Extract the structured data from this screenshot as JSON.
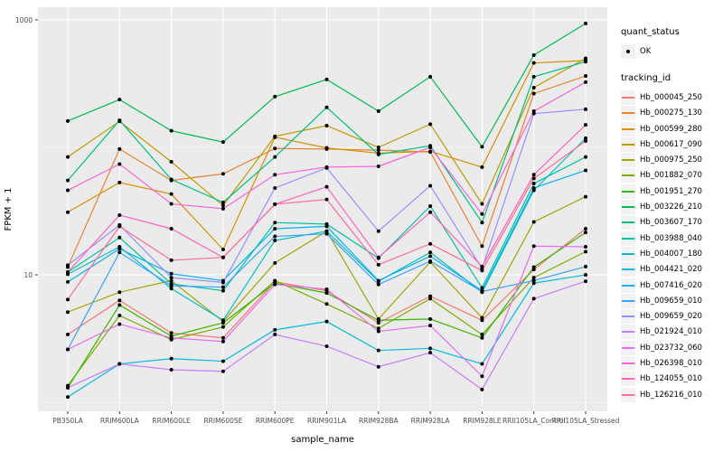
{
  "chart_data": {
    "type": "line",
    "title": "",
    "xlabel": "sample_name",
    "ylabel": "FPKM + 1",
    "y_scale": "log10",
    "ylim": [
      1,
      1000
    ],
    "grid": true,
    "panel_bg": "#EBEBEB",
    "grid_color": "#FFFFFF",
    "point_color": "#000000",
    "legend_position": "right",
    "y_major_ticks": [
      {
        "value": 10,
        "label": "10"
      },
      {
        "value": 1000,
        "label": "1000"
      }
    ],
    "y_minor_ticks": [
      1,
      100
    ],
    "categories": [
      "PB350LA",
      "RRIM600LA",
      "RRIM600LE",
      "RRIM600SE",
      "RRIM600PE",
      "RRIM901LA",
      "RRIM928BA",
      "RRIM928LA",
      "RRIM928LE",
      "RRII105LA_Control",
      "RRII105LA_Stressed"
    ],
    "series": [
      {
        "name": "Hb_000045_250",
        "color": "#F8766D",
        "values": [
          3.4,
          6.3,
          3.5,
          3.2,
          8.8,
          7.5,
          4.2,
          6.8,
          4.4,
          11.0,
          23.0
        ]
      },
      {
        "name": "Hb_000275_130",
        "color": "#EA8331",
        "values": [
          11.5,
          97.0,
          55.0,
          62.0,
          98.0,
          97.0,
          95.0,
          92.0,
          16.8,
          264.0,
          363.0
        ]
      },
      {
        "name": "Hb_000599_280",
        "color": "#D89000",
        "values": [
          31.0,
          53.0,
          43.0,
          15.8,
          120.0,
          99.0,
          90.0,
          93.0,
          70.0,
          459.0,
          480.0
        ]
      },
      {
        "name": "Hb_000617_090",
        "color": "#C09B00",
        "values": [
          84.0,
          160.0,
          77.0,
          35.0,
          122.0,
          148.0,
          100.0,
          152.0,
          36.0,
          294.0,
          500.0
        ]
      },
      {
        "name": "Hb_000975_250",
        "color": "#A3A500",
        "values": [
          5.1,
          7.3,
          9.0,
          4.3,
          12.4,
          22.0,
          4.5,
          12.6,
          4.6,
          26.0,
          41.0
        ]
      },
      {
        "name": "Hb_001882_070",
        "color": "#7CAE00",
        "values": [
          1.35,
          4.8,
          3.1,
          3.9,
          9.0,
          5.9,
          3.8,
          6.5,
          3.4,
          9.5,
          15.2
        ]
      },
      {
        "name": "Hb_001951_270",
        "color": "#39B600",
        "values": [
          1.3,
          5.8,
          3.3,
          4.2,
          8.6,
          7.2,
          4.4,
          4.5,
          3.2,
          11.5,
          21.5
        ]
      },
      {
        "name": "Hb_003226_210",
        "color": "#00BB4E",
        "values": [
          161.0,
          237.0,
          135.0,
          110.0,
          250.0,
          341.0,
          192.0,
          358.0,
          101.0,
          529.0,
          937.0
        ]
      },
      {
        "name": "Hb_003607_170",
        "color": "#00BF7D",
        "values": [
          55.0,
          163.0,
          56.0,
          37.0,
          84.0,
          206.0,
          88.0,
          103.0,
          25.7,
          358.0,
          470.0
        ]
      },
      {
        "name": "Hb_003988_040",
        "color": "#00C1A3",
        "values": [
          10.5,
          19.6,
          8.5,
          7.5,
          25.7,
          25.0,
          13.5,
          34.6,
          7.9,
          52.0,
          84.0
        ]
      },
      {
        "name": "Hb_004007_180",
        "color": "#00BFC4",
        "values": [
          10.1,
          16.6,
          7.8,
          4.4,
          18.6,
          22.0,
          8.9,
          15.0,
          7.3,
          46.0,
          118.0
        ]
      },
      {
        "name": "Hb_004421_020",
        "color": "#00BAE0",
        "values": [
          1.1,
          2.0,
          2.2,
          2.1,
          3.7,
          4.3,
          2.55,
          2.65,
          2.0,
          8.6,
          10.0
        ]
      },
      {
        "name": "Hb_007416_020",
        "color": "#00B0F6",
        "values": [
          8.8,
          16.0,
          10.2,
          9.0,
          23.0,
          24.0,
          9.0,
          14.0,
          7.5,
          48.0,
          66.0
        ]
      },
      {
        "name": "Hb_009659_010",
        "color": "#35A2FF",
        "values": [
          2.6,
          15.0,
          8.2,
          8.0,
          20.0,
          21.0,
          8.4,
          12.8,
          7.4,
          9.0,
          11.6
        ]
      },
      {
        "name": "Hb_009659_020",
        "color": "#9590FF",
        "values": [
          11.9,
          24.6,
          9.5,
          8.7,
          48.0,
          69.0,
          22.0,
          50.0,
          11.2,
          184.0,
          199.0
        ]
      },
      {
        "name": "Hb_021924_010",
        "color": "#C77CFF",
        "values": [
          1.3,
          2.0,
          1.8,
          1.75,
          3.4,
          2.75,
          1.9,
          2.45,
          1.26,
          6.5,
          8.9
        ]
      },
      {
        "name": "Hb_023732_060",
        "color": "#E76BF3",
        "values": [
          2.6,
          4.1,
          3.2,
          3.0,
          8.4,
          7.7,
          3.6,
          4.0,
          1.6,
          16.8,
          16.6
        ]
      },
      {
        "name": "Hb_026398_010",
        "color": "#FA62DB",
        "values": [
          46.0,
          74.0,
          36.0,
          33.0,
          61.0,
          70.0,
          71.0,
          100.0,
          30.0,
          192.0,
          325.0
        ]
      },
      {
        "name": "Hb_124055_010",
        "color": "#FF62BC",
        "values": [
          10.5,
          29.4,
          23.0,
          13.7,
          35.8,
          49.0,
          13.7,
          31.0,
          11.6,
          61.0,
          150.0
        ]
      },
      {
        "name": "Hb_126216_010",
        "color": "#FF6A98",
        "values": [
          6.4,
          24.0,
          13.0,
          13.7,
          35.8,
          39.0,
          12.0,
          17.5,
          10.8,
          57.0,
          112.0
        ]
      }
    ]
  },
  "legend": {
    "key_bg": "#F2F2F2",
    "quant_status": {
      "title": "quant_status",
      "items": [
        {
          "label": "OK",
          "marker": "point"
        }
      ]
    },
    "tracking_id": {
      "title": "tracking_id"
    }
  },
  "axis": {
    "tick_text_color": "#4D4D4D",
    "title_color": "#000000",
    "tick_mark_color": "#333333"
  }
}
